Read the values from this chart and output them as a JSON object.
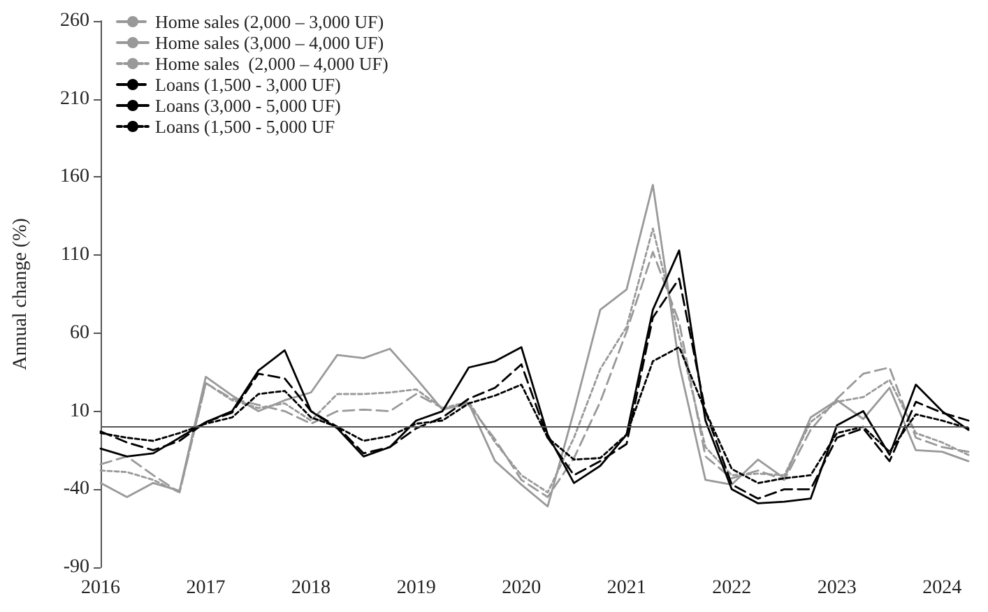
{
  "chart_data": {
    "type": "line",
    "ylabel": "Annual change (%)",
    "x": [
      2016,
      2016.25,
      2016.5,
      2016.75,
      2017,
      2017.25,
      2017.5,
      2017.75,
      2018,
      2018.25,
      2018.5,
      2018.75,
      2019,
      2019.25,
      2019.5,
      2019.75,
      2020,
      2020.25,
      2020.5,
      2020.75,
      2021,
      2021.25,
      2021.5,
      2021.75,
      2022,
      2022.25,
      2022.5,
      2022.75,
      2023,
      2023.25,
      2023.5,
      2023.75,
      2024,
      2024.25
    ],
    "xlim": [
      2016,
      2024.25
    ],
    "xticks": [
      2016,
      2017,
      2018,
      2019,
      2020,
      2021,
      2022,
      2023,
      2024
    ],
    "ylim": [
      -90,
      260
    ],
    "yticks": [
      -90,
      -40,
      10,
      60,
      110,
      160,
      210,
      260
    ],
    "grid": false,
    "legend": "top left",
    "marker": "none",
    "ref_lines": [
      {
        "axis": "y",
        "value": 0,
        "color": "#555555"
      }
    ],
    "series": [
      {
        "name": "Home sales (2,000 – 3,000 UF)",
        "color": "#999999",
        "line_style": "dashed",
        "values": [
          -24,
          -19,
          -31,
          -42,
          28,
          18,
          14,
          10,
          2,
          10,
          11,
          10,
          21,
          12,
          14,
          -8,
          -34,
          -45,
          -20,
          16,
          61,
          112,
          67,
          -19,
          -33,
          -28,
          -34,
          -2,
          18,
          34,
          38,
          -7,
          -13,
          -16
        ]
      },
      {
        "name": "Home sales (3,000 – 4,000 UF)",
        "color": "#999999",
        "line_style": "solid",
        "values": [
          -36,
          -45,
          -36,
          -41,
          32,
          20,
          10,
          17,
          22,
          46,
          44,
          50,
          31,
          11,
          15,
          -22,
          -37,
          -51,
          10,
          75,
          88,
          155,
          40,
          -34,
          -37,
          -21,
          -33,
          6,
          17,
          5,
          25,
          -15,
          -16,
          -22
        ]
      },
      {
        "name": "Home sales  (2,000 – 4,000 UF)",
        "color": "#999999",
        "line_style": "dotted",
        "values": [
          -28,
          -29,
          -34,
          -42,
          28,
          17,
          12,
          15,
          4,
          21,
          21,
          22,
          24,
          12,
          16,
          -10,
          -31,
          -42,
          -7,
          37,
          64,
          127,
          58,
          -13,
          -31,
          -30,
          -31,
          3,
          16,
          19,
          30,
          -4,
          -10,
          -18
        ]
      },
      {
        "name": "Loans (1,500 - 3,000 UF)",
        "color": "#000000",
        "line_style": "dashed",
        "values": [
          -3,
          -10,
          -15,
          -9,
          3,
          9,
          34,
          31,
          10,
          0,
          -17,
          -13,
          -1,
          6,
          18,
          25,
          40,
          -7,
          -31,
          -22,
          -11,
          70,
          95,
          10,
          -37,
          -46,
          -40,
          -40,
          -7,
          -1,
          -22,
          16,
          9,
          4
        ]
      },
      {
        "name": "Loans (3,000 - 5,000 UF)",
        "color": "#000000",
        "line_style": "solid",
        "values": [
          -14,
          -19,
          -17,
          -7,
          3,
          10,
          36,
          49,
          10,
          -1,
          -19,
          -13,
          4,
          10,
          38,
          42,
          51,
          -5,
          -36,
          -25,
          -5,
          75,
          113,
          4,
          -40,
          -49,
          -48,
          -46,
          1,
          10,
          -18,
          27,
          10,
          -2
        ]
      },
      {
        "name": "Loans (1,500 - 5,000 UF",
        "color": "#000000",
        "line_style": "dotted",
        "values": [
          -4,
          -7,
          -9,
          -4,
          2,
          6,
          21,
          23,
          6,
          0,
          -9,
          -6,
          2,
          4,
          15,
          20,
          27,
          -7,
          -21,
          -20,
          -5,
          42,
          51,
          10,
          -27,
          -36,
          -33,
          -31,
          -4,
          0,
          -16,
          8,
          4,
          -1
        ]
      }
    ]
  }
}
